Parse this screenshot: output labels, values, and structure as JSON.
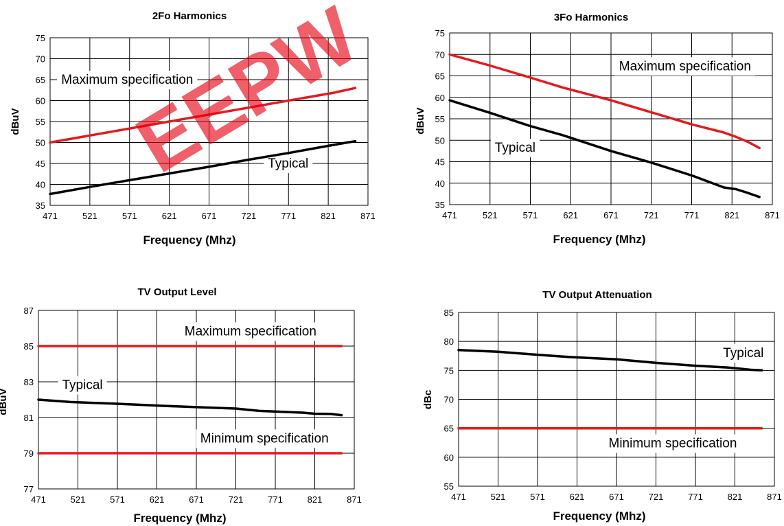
{
  "watermark": "EEPW",
  "colors": {
    "maximum": "#e41a1a",
    "minimum": "#e41a1a",
    "typical": "#000000"
  },
  "chart_data": [
    {
      "type": "line",
      "title": "2Fo Harmonics",
      "xlabel": "Frequency (Mhz)",
      "ylabel": "dBuV",
      "xlim": [
        471,
        871
      ],
      "ylim": [
        35,
        75
      ],
      "xticks": [
        471,
        521,
        571,
        621,
        671,
        721,
        771,
        821,
        871
      ],
      "yticks": [
        35,
        40,
        45,
        50,
        55,
        60,
        65,
        70,
        75
      ],
      "grid": true,
      "series": [
        {
          "role": "maximum",
          "x": [
            471,
            621,
            771,
            826,
            855
          ],
          "y": [
            50,
            55,
            60,
            61.8,
            63
          ]
        },
        {
          "role": "typical",
          "x": [
            471,
            521,
            571,
            621,
            671,
            721,
            771,
            821,
            845,
            855
          ],
          "y": [
            37.7,
            39.4,
            41.0,
            42.6,
            44.2,
            45.9,
            47.5,
            49.2,
            50.0,
            50.3
          ]
        }
      ],
      "annotations": [
        {
          "text": "Maximum specification",
          "x": 485,
          "y": 64
        },
        {
          "text": "Typical",
          "x": 745,
          "y": 44
        }
      ]
    },
    {
      "type": "line",
      "title": "3Fo Harmonics",
      "xlabel": "Frequency (Mhz)",
      "ylabel": "dBuV",
      "xlim": [
        471,
        871
      ],
      "ylim": [
        35,
        75
      ],
      "xticks": [
        471,
        521,
        571,
        621,
        671,
        721,
        771,
        821,
        871
      ],
      "yticks": [
        35,
        40,
        45,
        50,
        55,
        60,
        65,
        70,
        75
      ],
      "grid": true,
      "series": [
        {
          "role": "maximum",
          "x": [
            471,
            521,
            571,
            611,
            671,
            721,
            771,
            811,
            826,
            841,
            855
          ],
          "y": [
            70,
            67.4,
            64.6,
            62.3,
            59.3,
            56.5,
            53.7,
            51.8,
            50.8,
            49.6,
            48.2
          ]
        },
        {
          "role": "typical",
          "x": [
            471,
            521,
            571,
            611,
            671,
            721,
            771,
            811,
            826,
            841,
            855
          ],
          "y": [
            59.3,
            56.4,
            53.3,
            51.2,
            47.5,
            44.8,
            41.8,
            39.0,
            38.6,
            37.7,
            36.8
          ]
        }
      ],
      "annotations": [
        {
          "text": "Maximum specification",
          "x": 681,
          "y": 66.3
        },
        {
          "text": "Typical",
          "x": 527,
          "y": 47.3
        }
      ]
    },
    {
      "type": "line",
      "title": "TV Output Level",
      "xlabel": "Frequency (Mhz)",
      "ylabel": "dBuV",
      "xlim": [
        471,
        871
      ],
      "ylim": [
        77,
        87
      ],
      "xticks": [
        471,
        521,
        571,
        621,
        671,
        721,
        771,
        821,
        871
      ],
      "yticks": [
        77,
        79,
        81,
        83,
        85,
        87
      ],
      "grid": true,
      "series": [
        {
          "role": "maximum",
          "x": [
            471,
            855
          ],
          "y": [
            85,
            85
          ]
        },
        {
          "role": "minimum",
          "x": [
            471,
            855
          ],
          "y": [
            79,
            79
          ]
        },
        {
          "role": "typical",
          "x": [
            471,
            511,
            571,
            631,
            671,
            721,
            751,
            781,
            806,
            821,
            841,
            855
          ],
          "y": [
            82.0,
            81.87,
            81.77,
            81.65,
            81.58,
            81.5,
            81.37,
            81.32,
            81.27,
            81.21,
            81.2,
            81.13
          ]
        }
      ],
      "annotations": [
        {
          "text": "Maximum specification",
          "x": 656,
          "y": 85.6
        },
        {
          "text": "Typical",
          "x": 501,
          "y": 82.6
        },
        {
          "text": "Minimum specification",
          "x": 676,
          "y": 79.6
        }
      ]
    },
    {
      "type": "line",
      "title": "TV Output Attenuation",
      "xlabel": "Frequency (Mhz)",
      "ylabel": "dBc",
      "xlim": [
        471,
        871
      ],
      "ylim": [
        55,
        85
      ],
      "xticks": [
        471,
        521,
        571,
        621,
        671,
        721,
        771,
        821,
        871
      ],
      "yticks": [
        55,
        60,
        65,
        70,
        75,
        80,
        85
      ],
      "grid": true,
      "series": [
        {
          "role": "minimum",
          "x": [
            471,
            855
          ],
          "y": [
            65,
            65
          ]
        },
        {
          "role": "typical",
          "x": [
            471,
            521,
            571,
            611,
            671,
            721,
            771,
            811,
            826,
            841,
            855
          ],
          "y": [
            78.5,
            78.2,
            77.7,
            77.3,
            76.9,
            76.3,
            75.8,
            75.5,
            75.3,
            75.1,
            75.0
          ]
        }
      ],
      "annotations": [
        {
          "text": "Typical",
          "x": 806,
          "y": 77.3
        },
        {
          "text": "Minimum specification",
          "x": 661,
          "y": 61.7
        }
      ]
    }
  ]
}
